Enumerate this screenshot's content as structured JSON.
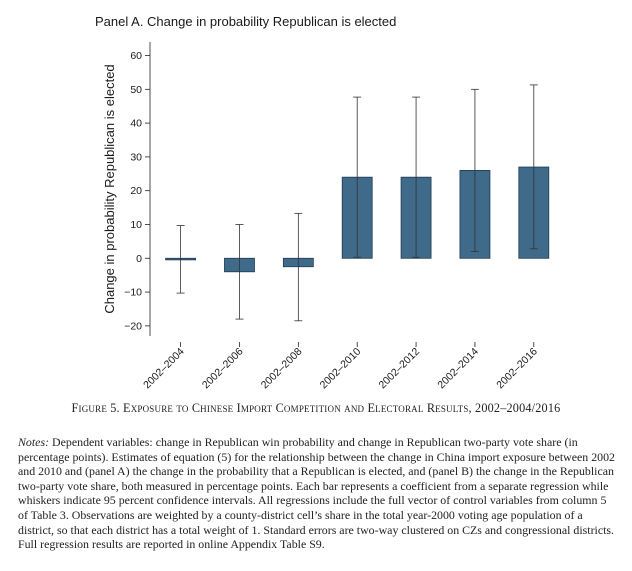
{
  "panel_title": "Panel A. Change in probability Republican is elected",
  "figure_caption": "Figure 5. Exposure to Chinese Import Competition and Electoral Results, 2002–2004/2016",
  "notes_label": "Notes:",
  "notes_text": "Dependent variables: change in Republican win probability and change in Republican two-party vote share (in percentage points). Estimates of equation (5) for the relationship between the change in China import exposure between 2002 and 2010 and (panel A) the change in the probability that a Republican is elected, and (panel B) the change in the Republican two-party vote share, both measured in percentage points. Each bar represents a coefficient from a separate regression while whiskers indicate 95 percent confidence intervals. All regressions include the full vector of control variables from column 5 of Table 3. Observations are weighted by a county-district cell’s share in the total year-2000 voting age population of a district, so that each district has a total weight of 1. Standard errors are two-way clustered on CZs and congressional districts. Full regression results are reported in online Appendix Table S9.",
  "chart_data": {
    "type": "bar",
    "title": "Panel A. Change in probability Republican is elected",
    "xlabel": "",
    "ylabel": "Change in probability Republican is elected",
    "categories": [
      "2002–2004",
      "2002–2006",
      "2002–2008",
      "2002–2010",
      "2002–2012",
      "2002–2014",
      "2002–2016"
    ],
    "values": [
      -0.3,
      -4.0,
      -2.5,
      24.0,
      24.0,
      26.0,
      27.0
    ],
    "ci_low": [
      -10.3,
      -18.0,
      -18.5,
      0.3,
      0.3,
      2.0,
      2.8
    ],
    "ci_high": [
      9.7,
      10.0,
      13.3,
      47.7,
      47.7,
      50.0,
      51.3
    ],
    "ylim": [
      -23,
      64
    ],
    "yticks": [
      -20,
      -10,
      0,
      10,
      20,
      30,
      40,
      50,
      60
    ],
    "ytick_labels": [
      "−20",
      "−10",
      "0",
      "10",
      "20",
      "30",
      "40",
      "50",
      "60"
    ],
    "bar_color": "#3f6a8a",
    "grid": false
  }
}
